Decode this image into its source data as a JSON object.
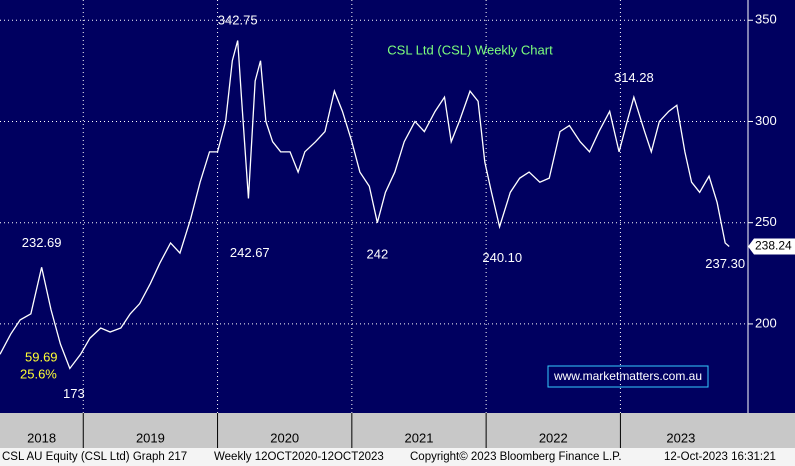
{
  "chart_data": {
    "type": "line",
    "title": "CSL Ltd (CSL) Weekly Chart",
    "x": [
      2018.38,
      2018.46,
      2018.53,
      2018.61,
      2018.69,
      2018.76,
      2018.83,
      2018.9,
      2018.98,
      2019.05,
      2019.13,
      2019.2,
      2019.28,
      2019.35,
      2019.42,
      2019.5,
      2019.57,
      2019.65,
      2019.72,
      2019.8,
      2019.87,
      2019.94,
      2020.0,
      2020.06,
      2020.11,
      2020.15,
      2020.18,
      2020.23,
      2020.28,
      2020.32,
      2020.36,
      2020.41,
      2020.47,
      2020.54,
      2020.6,
      2020.65,
      2020.73,
      2020.8,
      2020.87,
      2020.93,
      2021.0,
      2021.06,
      2021.13,
      2021.19,
      2021.25,
      2021.32,
      2021.39,
      2021.47,
      2021.54,
      2021.62,
      2021.69,
      2021.74,
      2021.8,
      2021.88,
      2021.94,
      2021.99,
      2022.04,
      2022.1,
      2022.18,
      2022.25,
      2022.32,
      2022.4,
      2022.47,
      2022.55,
      2022.62,
      2022.7,
      2022.77,
      2022.84,
      2022.92,
      2022.99,
      2023.05,
      2023.1,
      2023.18,
      2023.23,
      2023.29,
      2023.36,
      2023.42,
      2023.48,
      2023.53,
      2023.59,
      2023.66,
      2023.72,
      2023.78,
      2023.81
    ],
    "series": [
      {
        "name": "CSL AU Equity",
        "color": "#ffffff",
        "values": [
          185,
          195,
          202,
          205,
          228,
          207,
          190,
          178,
          185,
          193,
          198,
          196,
          198,
          205,
          210,
          220,
          230,
          240,
          235,
          252,
          270,
          285,
          285,
          300,
          330,
          340,
          310,
          262,
          320,
          330,
          300,
          290,
          285,
          285,
          275,
          285,
          290,
          295,
          315,
          305,
          290,
          275,
          268,
          250,
          265,
          275,
          290,
          300,
          295,
          305,
          312,
          290,
          300,
          315,
          310,
          280,
          265,
          248,
          265,
          272,
          275,
          270,
          272,
          295,
          298,
          290,
          285,
          295,
          305,
          285,
          300,
          312,
          295,
          285,
          300,
          305,
          308,
          285,
          270,
          265,
          273,
          260,
          240,
          238.24
        ]
      }
    ],
    "xlim": [
      2018.38,
      2023.95
    ],
    "xticks": [
      {
        "value": 2018.69,
        "label": "2018"
      },
      {
        "value": 2019.5,
        "label": "2019"
      },
      {
        "value": 2020.5,
        "label": "2020"
      },
      {
        "value": 2021.5,
        "label": "2021"
      },
      {
        "value": 2022.5,
        "label": "2022"
      },
      {
        "value": 2023.45,
        "label": "2023"
      }
    ],
    "xgrid": [
      2019,
      2020,
      2021,
      2022,
      2023
    ],
    "ylim": [
      156,
      360
    ],
    "yticks": [
      200,
      250,
      300,
      350
    ],
    "grid": true,
    "last_value": 238.24,
    "annotations": [
      {
        "x": 2020.15,
        "value": 342.75,
        "position": "above"
      },
      {
        "x": 2018.69,
        "value": 232.69,
        "position": "above"
      },
      {
        "x": 2018.93,
        "value": 173,
        "position": "below"
      },
      {
        "x": 2020.24,
        "value": 242.67,
        "position": "below"
      },
      {
        "x": 2021.19,
        "value": 242,
        "position": "below"
      },
      {
        "x": 2022.12,
        "value": 240.1,
        "label": "240.10",
        "position": "below"
      },
      {
        "x": 2023.1,
        "value": 314.28,
        "position": "above"
      },
      {
        "x": 2023.78,
        "value": 237.3,
        "label": "237.30",
        "position": "below"
      }
    ],
    "notes": [
      "59.69",
      "25.6%"
    ],
    "watermark": "www.marketmatters.com.au",
    "footer": [
      "CSL AU Equity (CSL Ltd) Graph 217",
      "Weekly 12OCT2020-12OCT2023",
      "Copyright© 2023 Bloomberg Finance L.P.",
      "12-Oct-2023 16:31:21"
    ]
  }
}
